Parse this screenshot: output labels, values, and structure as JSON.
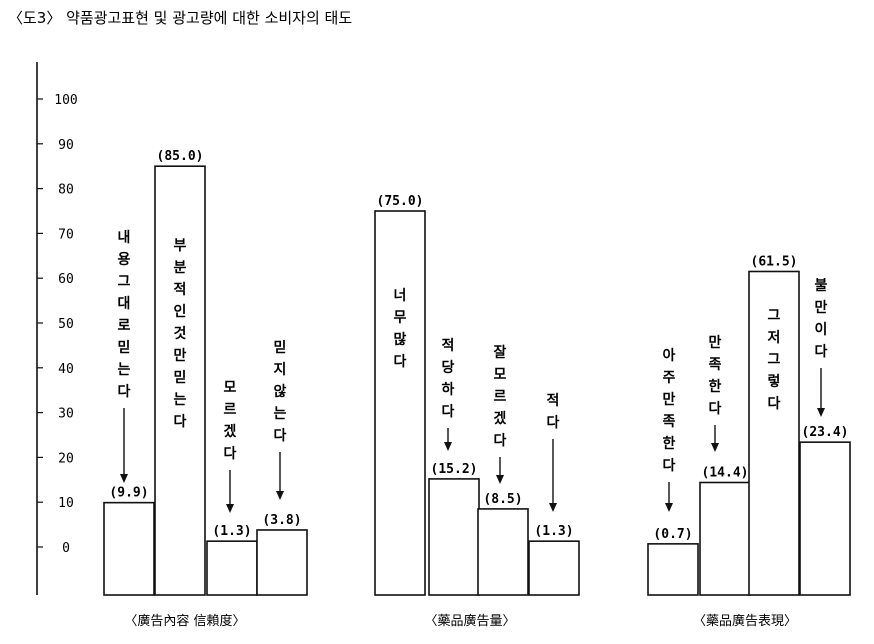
{
  "title": "〈도3〉 약품광고표현 및 광고량에 대한 소비자의 태도",
  "chart_data": {
    "type": "bar",
    "ylim": [
      0,
      100
    ],
    "yticks": [
      0,
      10,
      20,
      30,
      40,
      50,
      60,
      70,
      80,
      90,
      100
    ],
    "grid": false,
    "groups": [
      {
        "label": "〈廣告內容 信賴度〉",
        "bars": [
          {
            "label": "내용그대로믿는다",
            "value": 9.9,
            "value_label": "(9.9)"
          },
          {
            "label": "부분적인것만믿는다",
            "value": 85.0,
            "value_label": "(85.0)"
          },
          {
            "label": "모르겠다",
            "value": 1.3,
            "value_label": "(1.3)"
          },
          {
            "label": "믿지않는다",
            "value": 3.8,
            "value_label": "(3.8)"
          }
        ]
      },
      {
        "label": "〈藥品廣告量〉",
        "bars": [
          {
            "label": "너무많다",
            "value": 75.0,
            "value_label": "(75.0)"
          },
          {
            "label": "적당하다",
            "value": 15.2,
            "value_label": "(15.2)"
          },
          {
            "label": "잘모르겠다",
            "value": 8.5,
            "value_label": "(8.5)"
          },
          {
            "label": "적다",
            "value": 1.3,
            "value_label": "(1.3)"
          }
        ]
      },
      {
        "label": "〈藥品廣告表現〉",
        "bars": [
          {
            "label": "아주만족한다",
            "value": 0.7,
            "value_label": "(0.7)"
          },
          {
            "label": "만족한다",
            "value": 14.4,
            "value_label": "(14.4)"
          },
          {
            "label": "그저그렇다",
            "value": 61.5,
            "value_label": "(61.5)"
          },
          {
            "label": "불만이다",
            "value": 23.4,
            "value_label": "(23.4)"
          }
        ]
      }
    ]
  }
}
